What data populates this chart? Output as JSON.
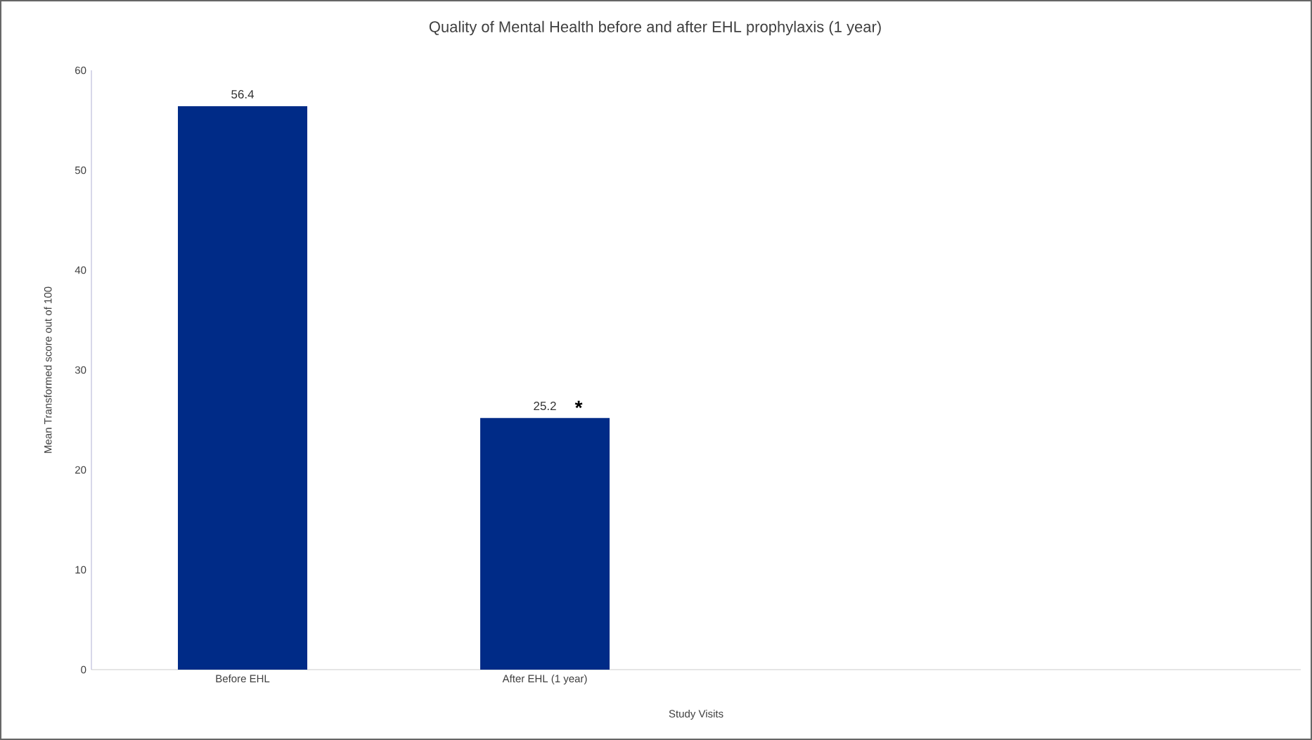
{
  "chart_data": {
    "type": "bar",
    "title": "Quality of Mental Health before and after EHL prophylaxis (1 year)",
    "xlabel": "Study Visits",
    "ylabel": "Mean Transformed score out of 100",
    "categories": [
      "Before EHL",
      "After EHL (1 year)",
      null,
      null
    ],
    "values": [
      56.4,
      25.2,
      null,
      null
    ],
    "color": "#002b87",
    "ylim": [
      0,
      60
    ],
    "yticks": [
      0,
      10,
      20,
      30,
      40,
      50,
      60
    ],
    "data_labels": true,
    "annotations": [
      {
        "text": "*",
        "x": "After EHL (1 year)",
        "y": 25.2
      }
    ]
  }
}
